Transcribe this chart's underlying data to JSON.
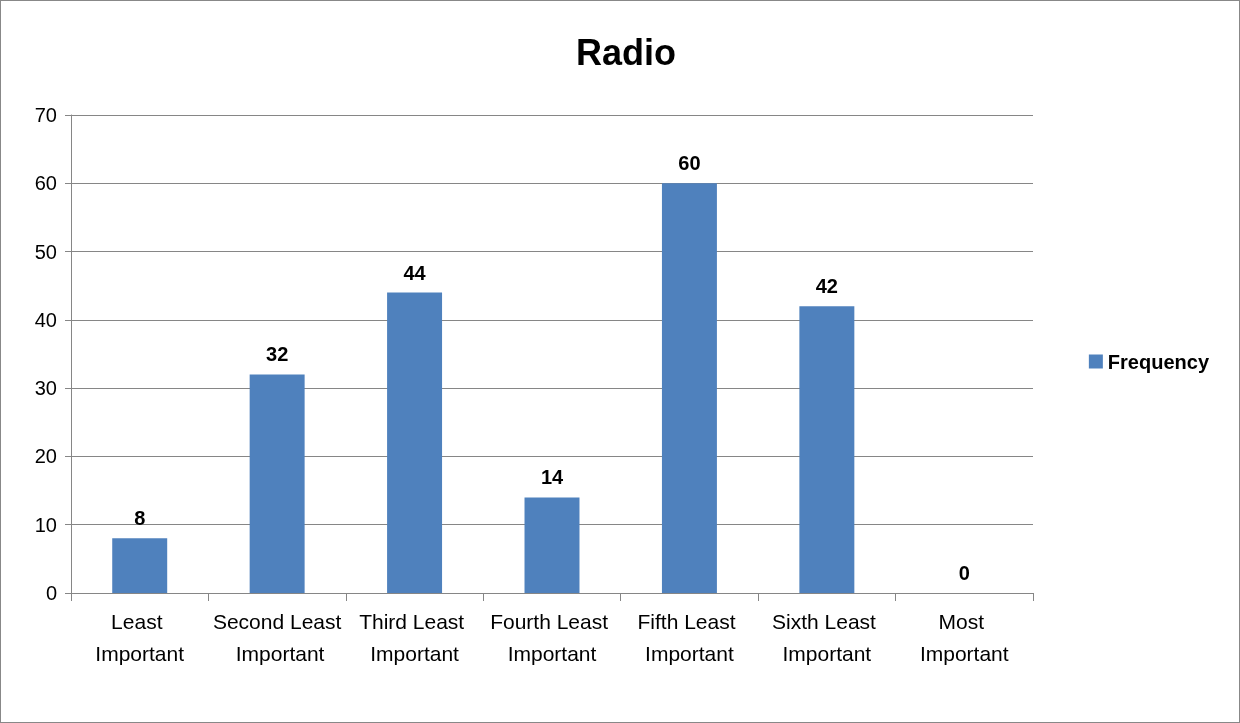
{
  "chart_data": {
    "type": "bar",
    "title": "Radio",
    "categories": [
      "Least Important",
      "Second Least Important",
      "Third Least Important",
      "Fourth Least Important",
      "Fifth Least Important",
      "Sixth Least Important",
      "Most Important"
    ],
    "series": [
      {
        "name": "Frequency",
        "color": "#4f81bd",
        "values": [
          8,
          32,
          44,
          14,
          60,
          42,
          0
        ]
      }
    ],
    "ylim": [
      0,
      70
    ],
    "yticks": [
      0,
      10,
      20,
      30,
      40,
      50,
      60,
      70
    ],
    "grid": "y",
    "legend": "right",
    "data_labels": true
  }
}
